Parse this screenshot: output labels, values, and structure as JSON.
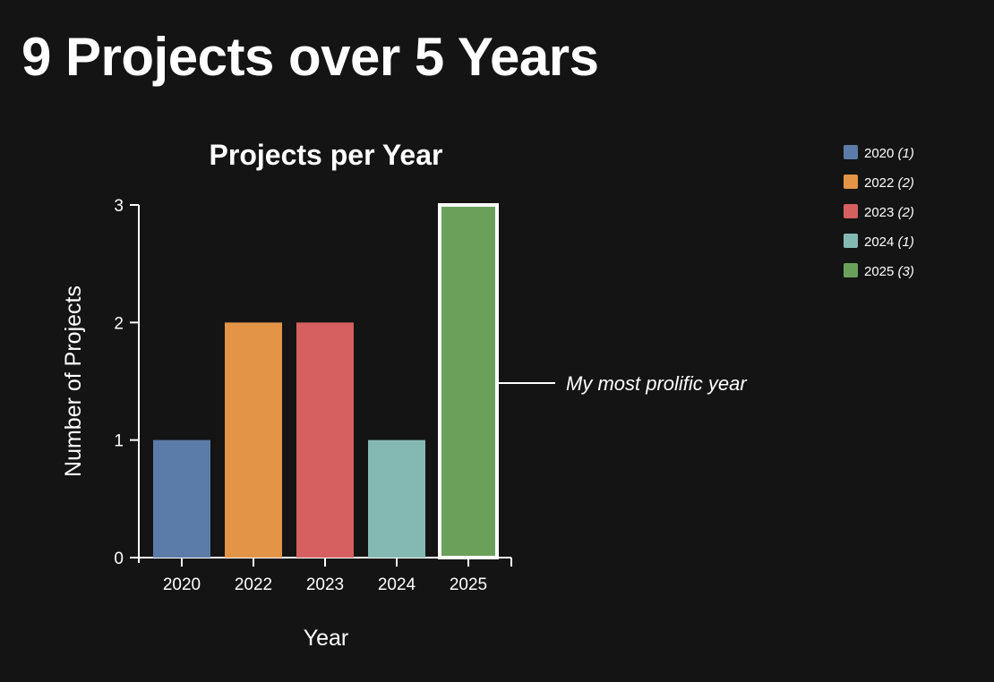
{
  "page": {
    "title": "9 Projects over 5 Years"
  },
  "chart_data": {
    "type": "bar",
    "title": "Projects per Year",
    "xlabel": "Year",
    "ylabel": "Number of Projects",
    "categories": [
      "2020",
      "2022",
      "2023",
      "2024",
      "2025"
    ],
    "values": [
      1,
      2,
      2,
      1,
      3
    ],
    "colors": [
      "#5b7ba8",
      "#e39447",
      "#d5605f",
      "#84b9b3",
      "#6ba05b"
    ],
    "ylim": [
      0,
      3
    ],
    "yticks": [
      0,
      1,
      2,
      3
    ],
    "grid": false,
    "legend_position": "top-right",
    "legend": [
      {
        "label": "2020",
        "count": "(1)"
      },
      {
        "label": "2022",
        "count": "(2)"
      },
      {
        "label": "2023",
        "count": "(2)"
      },
      {
        "label": "2024",
        "count": "(1)"
      },
      {
        "label": "2025",
        "count": "(3)"
      }
    ],
    "highlight": {
      "category": "2025",
      "annotation": "My most prolific year",
      "outline_color": "#ffffff"
    }
  }
}
